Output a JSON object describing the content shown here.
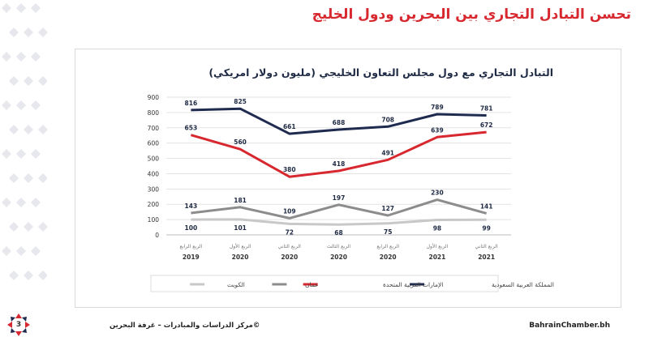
{
  "slide": {
    "title": "تحسن التبادل التجاري بين البحرين ودول الخليج",
    "page_number": "3",
    "footer_left": "©مركز الدراسات والمبادرات – غرفة البحرين",
    "footer_right": "BahrainChamber.bh"
  },
  "colors": {
    "saudi": "#1f2a4f",
    "uae": "#d7282f",
    "oman": "#8c8c8c",
    "kuwait": "#c8c8c8",
    "accent": "#d7282f"
  },
  "chart_data": {
    "type": "line",
    "title": "التبادل التجاري مع دول مجلس التعاون الخليجي (مليون دولار امريكي)",
    "categories": [
      [
        "الربع الرابع",
        "2019"
      ],
      [
        "الربع الأول",
        "2020"
      ],
      [
        "الربع الثاني",
        "2020"
      ],
      [
        "الربع الثالث",
        "2020"
      ],
      [
        "الربع الرابع",
        "2020"
      ],
      [
        "الربع الأول",
        "2021"
      ],
      [
        "الربع الثاني",
        "2021"
      ]
    ],
    "ylim": [
      0,
      900
    ],
    "yticks": [
      0,
      100,
      200,
      300,
      400,
      500,
      600,
      700,
      800,
      900
    ],
    "grid": true,
    "legend_position": "bottom",
    "series": [
      {
        "name": "المملكة العربية السعودية",
        "key": "saudi",
        "values": [
          816,
          825,
          661,
          688,
          708,
          789,
          781
        ],
        "label_pos": "above"
      },
      {
        "name": "الإمارات العربية المتحدة",
        "key": "uae",
        "values": [
          653,
          560,
          380,
          418,
          491,
          639,
          672
        ],
        "label_pos": "above"
      },
      {
        "name": "عمان",
        "key": "oman",
        "values": [
          143,
          181,
          109,
          197,
          127,
          230,
          141
        ],
        "label_pos": "above"
      },
      {
        "name": "الكويت",
        "key": "kuwait",
        "values": [
          100,
          101,
          72,
          68,
          75,
          98,
          99
        ],
        "label_pos": "below"
      }
    ]
  }
}
